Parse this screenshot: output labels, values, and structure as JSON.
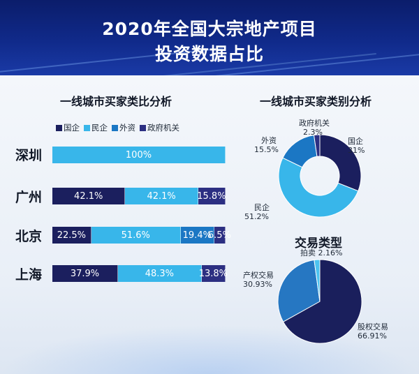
{
  "header": {
    "title_line1": "2020年全国大宗地产项目",
    "title_line2": "投资数据占比"
  },
  "colors": {
    "guoqi": "#1b1f5e",
    "minqi": "#38b6ea",
    "waizi": "#1b77c4",
    "zhengfu": "#2c2f82",
    "equity": "#1a1f5c",
    "property": "#2677c2",
    "auction": "#4cc3ef"
  },
  "chart_data": [
    {
      "type": "bar",
      "title": "一线城市买家类比分析",
      "legend": [
        "国企",
        "民企",
        "外资",
        "政府机关"
      ],
      "legend_colors": [
        "#1b1f5e",
        "#38b6ea",
        "#1b77c4",
        "#2c2f82"
      ],
      "categories": [
        "深圳",
        "广州",
        "北京",
        "上海"
      ],
      "rows": [
        {
          "city": "深圳",
          "segments": [
            {
              "series": "民企",
              "value": 100,
              "label": "100%"
            }
          ]
        },
        {
          "city": "广州",
          "segments": [
            {
              "series": "国企",
              "value": 42.1,
              "label": "42.1%"
            },
            {
              "series": "民企",
              "value": 42.1,
              "label": "42.1%"
            },
            {
              "series": "政府机关",
              "value": 15.8,
              "label": "15.8%"
            }
          ]
        },
        {
          "city": "北京",
          "segments": [
            {
              "series": "国企",
              "value": 22.5,
              "label": "22.5%"
            },
            {
              "series": "民企",
              "value": 51.6,
              "label": "51.6%"
            },
            {
              "series": "外资",
              "value": 19.4,
              "label": "19.4%"
            },
            {
              "series": "政府机关",
              "value": 6.5,
              "label": "6.5%"
            }
          ]
        },
        {
          "city": "上海",
          "segments": [
            {
              "series": "国企",
              "value": 37.9,
              "label": "37.9%"
            },
            {
              "series": "民企",
              "value": 48.3,
              "label": "48.3%"
            },
            {
              "series": "政府机关",
              "value": 13.8,
              "label": "13.8%"
            }
          ]
        }
      ]
    },
    {
      "type": "pie",
      "subtype": "donut",
      "title": "一线城市买家类别分析",
      "slices": [
        {
          "name": "国企",
          "value": 31,
          "label": "31%",
          "color": "#1b1f5e"
        },
        {
          "name": "民企",
          "value": 51.2,
          "label": "51.2%",
          "color": "#38b6ea"
        },
        {
          "name": "外资",
          "value": 15.5,
          "label": "15.5%",
          "color": "#1b77c4"
        },
        {
          "name": "政府机关",
          "value": 2.3,
          "label": "2.3%",
          "color": "#2c2f82"
        }
      ]
    },
    {
      "type": "pie",
      "title": "交易类型",
      "slices": [
        {
          "name": "股权交易",
          "value": 66.91,
          "label": "66.91%",
          "color": "#1a1f5c"
        },
        {
          "name": "产权交易",
          "value": 30.93,
          "label": "30.93%",
          "color": "#2677c2"
        },
        {
          "name": "拍卖",
          "value": 2.16,
          "label": "2.16%",
          "color": "#4cc3ef"
        }
      ]
    }
  ]
}
